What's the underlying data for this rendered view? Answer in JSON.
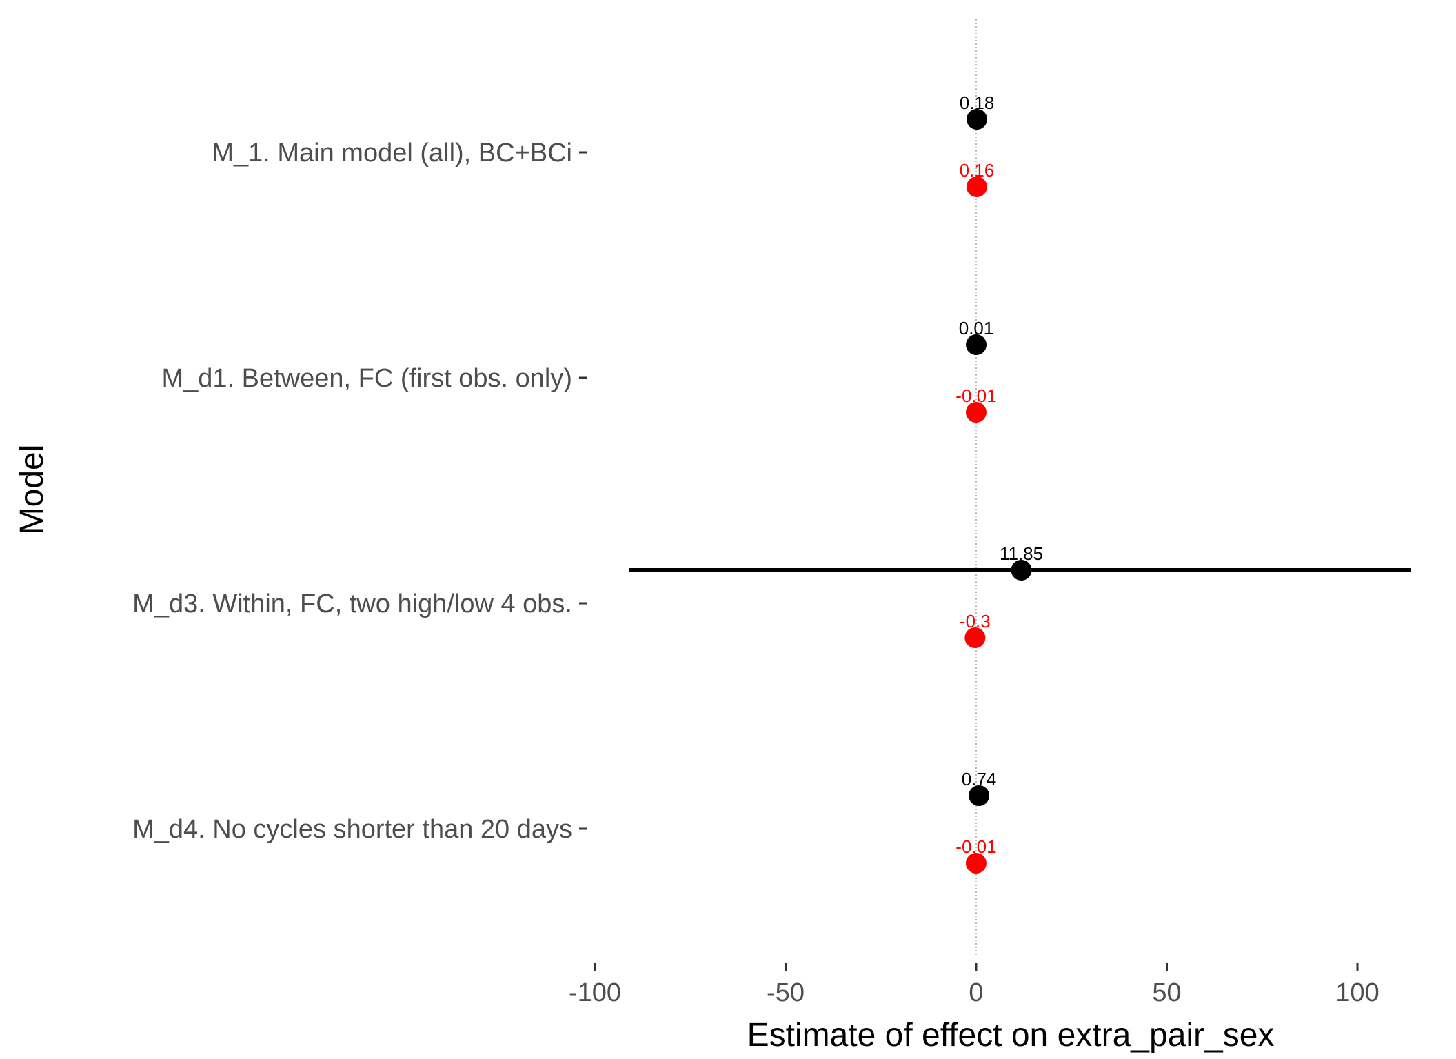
{
  "chart_data": {
    "type": "scatter",
    "title": "",
    "xlabel": "Estimate of effect on extra_pair_sex",
    "ylabel": "Model",
    "xlim": [
      -100,
      115
    ],
    "x_ticks": [
      -100,
      -50,
      0,
      50,
      100
    ],
    "x_tick_labels": [
      "-100",
      "-50",
      "0",
      "50",
      "100"
    ],
    "reference_line_x": 0,
    "categories": [
      "M_1. Main model (all), BC+BCi",
      "M_d1. Between, FC (first obs. only)",
      "M_d3. Within, FC, two high/low 4 obs.",
      "M_d4. No cycles shorter than 20 days"
    ],
    "series": [
      {
        "color": "#000000",
        "values": [
          0.18,
          0.01,
          11.85,
          0.74
        ],
        "labels": [
          "0.18",
          "0.01",
          "11.85",
          "0.74"
        ],
        "interval_low": [
          null,
          null,
          -91,
          null
        ],
        "interval_high": [
          null,
          null,
          114,
          null
        ]
      },
      {
        "color": "#ff0000",
        "values": [
          0.16,
          -0.01,
          -0.3,
          -0.01
        ],
        "labels": [
          "0.16",
          "-0.01",
          "-0.3",
          "-0.01"
        ],
        "interval_low": [
          null,
          null,
          null,
          null
        ],
        "interval_high": [
          null,
          null,
          null,
          null
        ]
      }
    ],
    "grid": false,
    "legend": "none"
  }
}
